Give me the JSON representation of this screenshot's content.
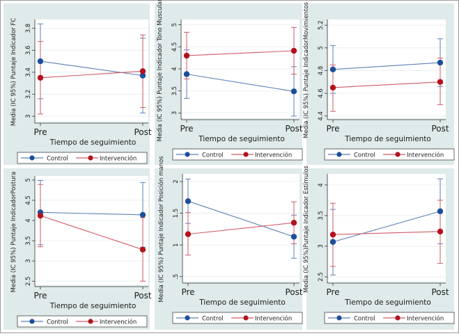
{
  "figure": {
    "background": "#dfeaea",
    "plot_background": "#ffffff",
    "control_color": "#1a4f9c",
    "intervention_color": "#b3121f",
    "control_line_color": "#5b7fb5",
    "intervention_line_color": "#cf5a66"
  },
  "chart_data": [
    {
      "type": "line",
      "title": "",
      "xlabel": "Tiempo de seguimiento",
      "ylabel": "Media (IC 95%) Puntaje Indicador FC",
      "categories": [
        "Pre",
        "Post"
      ],
      "ylim": [
        2.95,
        3.88
      ],
      "yticks": [
        3,
        3.2,
        3.4,
        3.6,
        3.8
      ],
      "ytick_labels": [
        "3",
        "3.2",
        "3.4",
        "3.6",
        "3.8"
      ],
      "grid": true,
      "legend": "bottom",
      "series": [
        {
          "name": "Control",
          "values": [
            3.5,
            3.37
          ],
          "ci_low": [
            3.16,
            3.03
          ],
          "ci_high": [
            3.84,
            3.71
          ]
        },
        {
          "name": "Intervención",
          "values": [
            3.35,
            3.41
          ],
          "ci_low": [
            3.02,
            3.08
          ],
          "ci_high": [
            3.68,
            3.74
          ]
        }
      ]
    },
    {
      "type": "line",
      "title": "",
      "xlabel": "Tiempo de seguimiento",
      "ylabel": "Media (IC 95%) Puntaje Indicador Tono Muscular",
      "categories": [
        "Pre",
        "Post"
      ],
      "ylim": [
        2.88,
        5.12
      ],
      "yticks": [
        3,
        3.5,
        4,
        4.5,
        5
      ],
      "ytick_labels": [
        "3",
        "3.5",
        "4",
        "4.5",
        "5"
      ],
      "grid": true,
      "legend": "bottom",
      "series": [
        {
          "name": "Control",
          "values": [
            3.88,
            3.49
          ],
          "ci_low": [
            3.33,
            2.93
          ],
          "ci_high": [
            4.43,
            4.05
          ]
        },
        {
          "name": "Intervención",
          "values": [
            4.3,
            4.41
          ],
          "ci_low": [
            3.77,
            3.88
          ],
          "ci_high": [
            4.83,
            4.94
          ]
        }
      ]
    },
    {
      "type": "line",
      "title": "",
      "xlabel": "Tiempo de seguimiento",
      "ylabel": "Media (IC 95%) Puntaje IndicadorMovimientos",
      "categories": [
        "Pre",
        "Post"
      ],
      "ylim": [
        4.38,
        5.25
      ],
      "yticks": [
        4.4,
        4.6,
        4.8,
        5,
        5.2
      ],
      "ytick_labels": [
        "4.4",
        "4.6",
        "4.8",
        "5",
        "5.2"
      ],
      "grid": true,
      "legend": "bottom",
      "series": [
        {
          "name": "Control",
          "values": [
            4.81,
            4.87
          ],
          "ci_low": [
            4.6,
            4.66
          ],
          "ci_high": [
            5.02,
            5.08
          ]
        },
        {
          "name": "Intervención",
          "values": [
            4.65,
            4.7
          ],
          "ci_low": [
            4.44,
            4.5
          ],
          "ci_high": [
            4.85,
            4.91
          ]
        }
      ]
    },
    {
      "type": "line",
      "title": "",
      "xlabel": "Tiempo de seguimiento",
      "ylabel": "Media (IC 95%) Puntaje IndicadorPostura",
      "categories": [
        "Pre",
        "Post"
      ],
      "ylim": [
        2.4,
        5.1
      ],
      "yticks": [
        2.5,
        3,
        3.5,
        4,
        4.5,
        5
      ],
      "ytick_labels": [
        "2.5",
        "3",
        "3.5",
        "4",
        "4.5",
        "5"
      ],
      "grid": true,
      "legend": "bottom",
      "series": [
        {
          "name": "Control",
          "values": [
            4.2,
            4.14
          ],
          "ci_low": [
            3.4,
            3.34
          ],
          "ci_high": [
            4.99,
            4.94
          ]
        },
        {
          "name": "Intervención",
          "values": [
            4.12,
            3.28
          ],
          "ci_low": [
            3.35,
            2.5
          ],
          "ci_high": [
            4.89,
            4.07
          ]
        }
      ]
    },
    {
      "type": "line",
      "title": "",
      "xlabel": "Tiempo de seguimiento",
      "ylabel": "Media (IC 95%) Puntaje Indicador Posición manos",
      "categories": [
        "Pre",
        "Post"
      ],
      "ylim": [
        0.42,
        2.12
      ],
      "yticks": [
        0.5,
        1,
        1.5,
        2
      ],
      "ytick_labels": [
        ".5",
        "1",
        "1.5",
        "2"
      ],
      "grid": true,
      "legend": "bottom",
      "series": [
        {
          "name": "Control",
          "values": [
            1.69,
            1.13
          ],
          "ci_low": [
            1.34,
            0.79
          ],
          "ci_high": [
            2.04,
            1.47
          ]
        },
        {
          "name": "Intervención",
          "values": [
            1.17,
            1.35
          ],
          "ci_low": [
            0.84,
            1.02
          ],
          "ci_high": [
            1.51,
            1.68
          ]
        }
      ]
    },
    {
      "type": "line",
      "title": "",
      "xlabel": "Tiempo de seguimiento",
      "ylabel": "Media (IC 95%)Puntaje Indicador Estímulos",
      "categories": [
        "Pre",
        "Post"
      ],
      "ylim": [
        2.42,
        4.18
      ],
      "yticks": [
        2.5,
        3,
        3.5,
        4
      ],
      "ytick_labels": [
        "2.5",
        "3",
        "3.5",
        "4"
      ],
      "grid": true,
      "legend": "bottom",
      "series": [
        {
          "name": "Control",
          "values": [
            3.07,
            3.57
          ],
          "ci_low": [
            2.53,
            3.04
          ],
          "ci_high": [
            3.6,
            4.1
          ]
        },
        {
          "name": "Intervención",
          "values": [
            3.19,
            3.24
          ],
          "ci_low": [
            2.67,
            2.72
          ],
          "ci_high": [
            3.7,
            3.75
          ]
        }
      ]
    }
  ]
}
